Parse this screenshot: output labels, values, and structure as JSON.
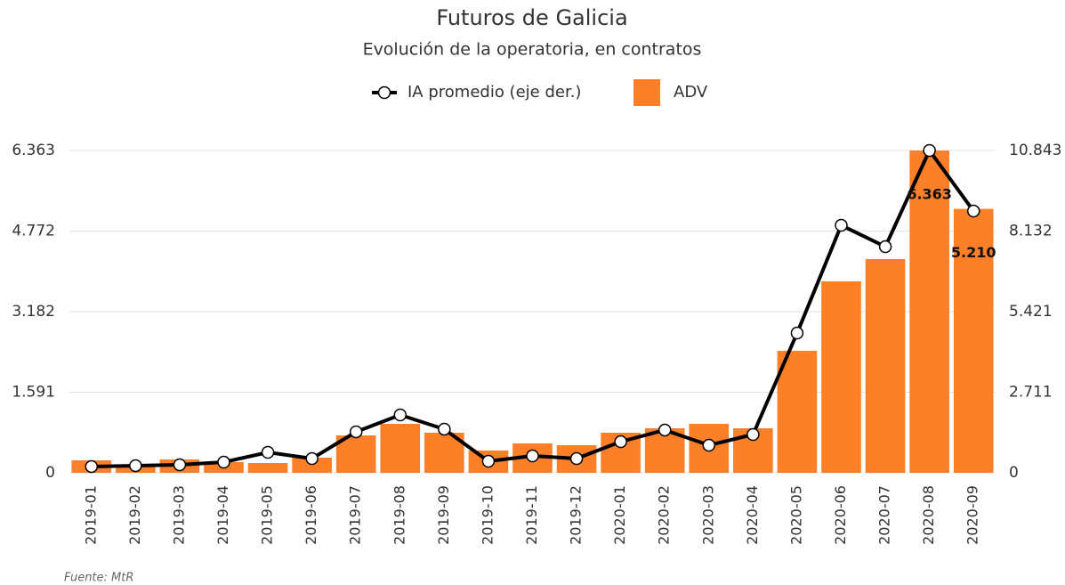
{
  "chart_data": {
    "type": "bar",
    "title": "Futuros de Galicia",
    "subtitle": "Evolución de la operatoria, en contratos",
    "source": "Fuente: MtR",
    "categories": [
      "2019-01",
      "2019-02",
      "2019-03",
      "2019-04",
      "2019-05",
      "2019-06",
      "2019-07",
      "2019-08",
      "2019-09",
      "2019-10",
      "2019-11",
      "2019-12",
      "2020-01",
      "2020-02",
      "2020-03",
      "2020-04",
      "2020-05",
      "2020-06",
      "2020-07",
      "2020-08",
      "2020-09"
    ],
    "series": [
      {
        "name": "IA promedio (eje der.)",
        "type": "line",
        "axis": "y2",
        "color": "#000000",
        "values": [
          210,
          240,
          270,
          359,
          689,
          479,
          1378,
          1947,
          1468,
          389,
          569,
          479,
          1048,
          1438,
          928,
          1288,
          4702,
          8326,
          7607,
          10843,
          8805
        ]
      },
      {
        "name": "ADV",
        "type": "bar",
        "color": "#fd7f28",
        "values": [
          246,
          141,
          264,
          211,
          193,
          299,
          738,
          967,
          791,
          440,
          580,
          545,
          791,
          879,
          967,
          879,
          2408,
          3780,
          4219,
          6363,
          5210
        ],
        "value_labels": [
          null,
          null,
          null,
          null,
          null,
          null,
          null,
          null,
          null,
          null,
          null,
          null,
          null,
          null,
          null,
          null,
          null,
          null,
          null,
          "6.363",
          "5.210"
        ]
      }
    ],
    "ylim": [
      0,
      6363
    ],
    "yticks": [
      0,
      {
        "value": 1591,
        "label": "1.591"
      },
      {
        "value": 3182,
        "label": "3.182"
      },
      {
        "value": 4772,
        "label": "4.772"
      },
      {
        "value": 6363,
        "label": "6.363"
      }
    ],
    "y2lim": [
      0,
      10843
    ],
    "y2ticks": [
      0,
      {
        "value": 2711,
        "label": "2.711"
      },
      {
        "value": 5421,
        "label": "5.421"
      },
      {
        "value": 8132,
        "label": "8.132"
      },
      {
        "value": 10843,
        "label": "10.843"
      }
    ],
    "grid": true
  }
}
